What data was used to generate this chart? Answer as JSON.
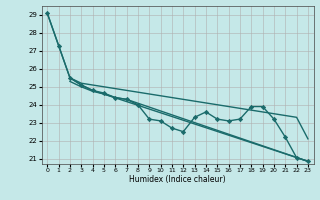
{
  "title": "",
  "xlabel": "Humidex (Indice chaleur)",
  "bg_color": "#c5e8e8",
  "grid_color": "#b0b0b0",
  "line_color": "#1a6b6b",
  "xlim": [
    -0.5,
    23.5
  ],
  "ylim": [
    20.7,
    29.5
  ],
  "yticks": [
    21,
    22,
    23,
    24,
    25,
    26,
    27,
    28,
    29
  ],
  "xticks": [
    0,
    1,
    2,
    3,
    4,
    5,
    6,
    7,
    8,
    9,
    10,
    11,
    12,
    13,
    14,
    15,
    16,
    17,
    18,
    19,
    20,
    21,
    22,
    23
  ],
  "series": [
    {
      "x": [
        0,
        1,
        2,
        3,
        4,
        5,
        6,
        7,
        8,
        9,
        10,
        11,
        12,
        13,
        14,
        15,
        16,
        17,
        18,
        19,
        20,
        21,
        22,
        23
      ],
      "y": [
        29.1,
        27.3,
        25.5,
        25.1,
        24.8,
        24.65,
        24.4,
        24.3,
        24.0,
        23.2,
        23.1,
        22.7,
        22.5,
        23.3,
        23.6,
        23.2,
        23.1,
        23.2,
        23.9,
        23.9,
        23.2,
        22.2,
        21.05,
        20.85
      ],
      "marker": true,
      "linewidth": 1.0
    },
    {
      "x": [
        0,
        2,
        3,
        4,
        23
      ],
      "y": [
        29.1,
        25.5,
        25.1,
        24.8,
        20.85
      ],
      "marker": false,
      "linewidth": 1.0
    },
    {
      "x": [
        2,
        3,
        4,
        5,
        6,
        7,
        8,
        9,
        10,
        11,
        12,
        13,
        14,
        15,
        16,
        17,
        18,
        19,
        20,
        21,
        22,
        23
      ],
      "y": [
        25.5,
        25.2,
        25.1,
        25.0,
        24.9,
        24.8,
        24.7,
        24.6,
        24.5,
        24.4,
        24.3,
        24.2,
        24.1,
        24.0,
        23.9,
        23.8,
        23.7,
        23.6,
        23.5,
        23.4,
        23.3,
        22.1
      ],
      "marker": false,
      "linewidth": 1.0
    },
    {
      "x": [
        2,
        3,
        4,
        5,
        6,
        7,
        23
      ],
      "y": [
        25.3,
        25.0,
        24.75,
        24.6,
        24.4,
        24.3,
        20.85
      ],
      "marker": false,
      "linewidth": 1.0
    }
  ]
}
